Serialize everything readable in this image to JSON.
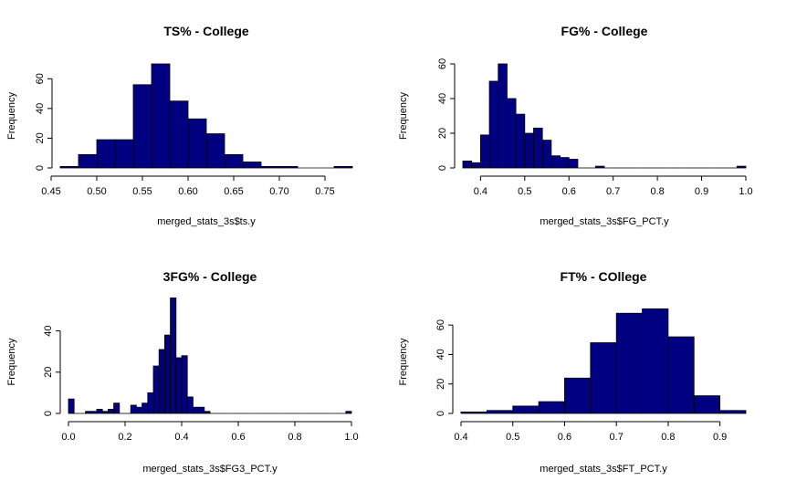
{
  "chart_data": [
    {
      "type": "bar",
      "title": "TS% - College",
      "xlabel": "merged_stats_3s$ts.y",
      "ylabel": "Frequency",
      "color": "#000080",
      "xlim": [
        0.46,
        0.78
      ],
      "ylim": [
        0,
        70
      ],
      "xticks": [
        0.45,
        0.5,
        0.55,
        0.6,
        0.65,
        0.7,
        0.75
      ],
      "xtick_labels": [
        "0.45",
        "0.50",
        "0.55",
        "0.60",
        "0.65",
        "0.70",
        "0.75"
      ],
      "yticks": [
        0,
        20,
        40,
        60
      ],
      "ytick_labels": [
        "0",
        "20",
        "40",
        "60"
      ],
      "bins": [
        0.46,
        0.48,
        0.5,
        0.52,
        0.54,
        0.56,
        0.58,
        0.6,
        0.62,
        0.64,
        0.66,
        0.68,
        0.7,
        0.72,
        0.74,
        0.76,
        0.78
      ],
      "counts": [
        1,
        9,
        19,
        19,
        56,
        70,
        45,
        33,
        23,
        9,
        4,
        1,
        1,
        0,
        0,
        1
      ]
    },
    {
      "type": "bar",
      "title": "FG% - College",
      "xlabel": "merged_stats_3s$FG_PCT.y",
      "ylabel": "Frequency",
      "color": "#000080",
      "xlim": [
        0.36,
        1.0
      ],
      "ylim": [
        0,
        60
      ],
      "xticks": [
        0.4,
        0.5,
        0.6,
        0.7,
        0.8,
        0.9,
        1.0
      ],
      "xtick_labels": [
        "0.4",
        "0.5",
        "0.6",
        "0.7",
        "0.8",
        "0.9",
        "1.0"
      ],
      "yticks": [
        0,
        20,
        40,
        60
      ],
      "ytick_labels": [
        "0",
        "20",
        "40",
        "60"
      ],
      "bins": [
        0.36,
        0.38,
        0.4,
        0.42,
        0.44,
        0.46,
        0.48,
        0.5,
        0.52,
        0.54,
        0.56,
        0.58,
        0.6,
        0.62,
        0.64,
        0.66,
        0.68,
        0.7,
        0.72,
        0.74,
        0.76,
        0.78,
        0.8,
        0.82,
        0.84,
        0.86,
        0.88,
        0.9,
        0.92,
        0.94,
        0.96,
        0.98,
        1.0
      ],
      "counts": [
        4,
        3,
        19,
        50,
        60,
        40,
        31,
        20,
        23,
        16,
        7,
        6,
        5,
        0,
        0,
        1,
        0,
        0,
        0,
        0,
        0,
        0,
        0,
        0,
        0,
        0,
        0,
        0,
        0,
        0,
        0,
        1
      ]
    },
    {
      "type": "bar",
      "title": "3FG% - College",
      "xlabel": "merged_stats_3s$FG3_PCT.y",
      "ylabel": "Frequency",
      "color": "#000080",
      "xlim": [
        0,
        1.0
      ],
      "ylim": [
        0,
        50
      ],
      "xticks": [
        0.0,
        0.2,
        0.4,
        0.6,
        0.8,
        1.0
      ],
      "xtick_labels": [
        "0.0",
        "0.2",
        "0.4",
        "0.6",
        "0.8",
        "1.0"
      ],
      "yticks": [
        0,
        20,
        40
      ],
      "ytick_labels": [
        "0",
        "20",
        "40"
      ],
      "bins": [
        0.0,
        0.02,
        0.04,
        0.06,
        0.08,
        0.1,
        0.12,
        0.14,
        0.16,
        0.18,
        0.2,
        0.22,
        0.24,
        0.26,
        0.28,
        0.3,
        0.32,
        0.34,
        0.36,
        0.38,
        0.4,
        0.42,
        0.44,
        0.46,
        0.48,
        0.5,
        0.52,
        0.54,
        0.56,
        0.58,
        0.6,
        0.62,
        0.64,
        0.66,
        0.68,
        0.7,
        0.72,
        0.74,
        0.76,
        0.78,
        0.8,
        0.82,
        0.84,
        0.86,
        0.88,
        0.9,
        0.92,
        0.94,
        0.96,
        0.98,
        1.0
      ],
      "counts": [
        7,
        0,
        0,
        1,
        1,
        2,
        1,
        2,
        5,
        0,
        0,
        4,
        3,
        5,
        10,
        23,
        31,
        38,
        56,
        27,
        28,
        8,
        3,
        3,
        1,
        0,
        0,
        0,
        0,
        0,
        0,
        0,
        0,
        0,
        0,
        0,
        0,
        0,
        0,
        0,
        0,
        0,
        0,
        0,
        0,
        0,
        0,
        0,
        0,
        1
      ]
    },
    {
      "type": "bar",
      "title": "FT% - COllege",
      "xlabel": "merged_stats_3s$FT_PCT.y",
      "ylabel": "Frequency",
      "color": "#000080",
      "xlim": [
        0.4,
        0.95
      ],
      "ylim": [
        0,
        70
      ],
      "xticks": [
        0.4,
        0.5,
        0.6,
        0.7,
        0.8,
        0.9
      ],
      "xtick_labels": [
        "0.4",
        "0.5",
        "0.6",
        "0.7",
        "0.8",
        "0.9"
      ],
      "yticks": [
        0,
        20,
        40,
        60
      ],
      "ytick_labels": [
        "0",
        "20",
        "40",
        "60"
      ],
      "bins": [
        0.4,
        0.45,
        0.5,
        0.55,
        0.6,
        0.65,
        0.7,
        0.75,
        0.8,
        0.85,
        0.9,
        0.95
      ],
      "counts": [
        1,
        2,
        5,
        8,
        24,
        48,
        68,
        71,
        52,
        12,
        2
      ]
    }
  ]
}
